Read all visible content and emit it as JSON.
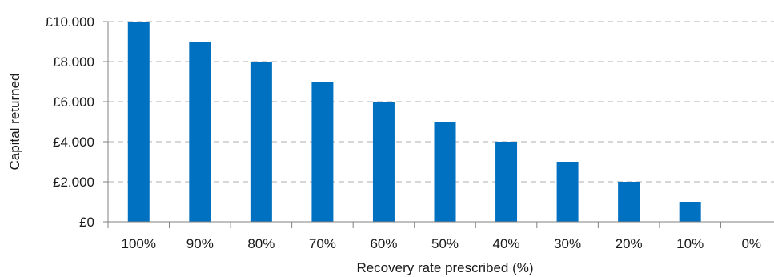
{
  "chart_data": {
    "type": "bar",
    "title": "",
    "xlabel": "Recovery rate prescribed (%)",
    "ylabel": "Capital returned",
    "categories": [
      "100%",
      "90%",
      "80%",
      "70%",
      "60%",
      "50%",
      "40%",
      "30%",
      "20%",
      "10%",
      "0%"
    ],
    "values": [
      10000,
      9000,
      8000,
      7000,
      6000,
      5000,
      4000,
      3000,
      2000,
      1000,
      0
    ],
    "ylim": [
      0,
      10000
    ],
    "ytick_values": [
      0,
      2000,
      4000,
      6000,
      8000,
      10000
    ],
    "ytick_labels": [
      "£0",
      "£2.000",
      "£4.000",
      "£6.000",
      "£8.000",
      "£10.000"
    ],
    "grid": true,
    "legend": "none",
    "colors": {
      "bar": "#0070C0",
      "grid": "#BFBFBF",
      "axis": "#808080"
    }
  }
}
